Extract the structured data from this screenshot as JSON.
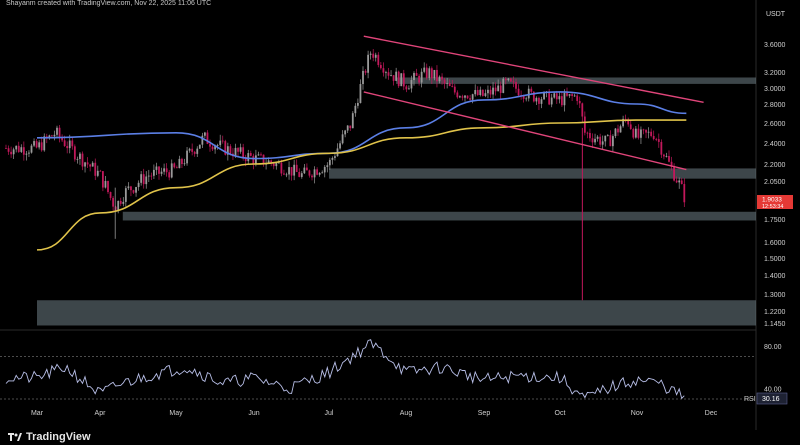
{
  "header": {
    "credit": "Shayanm created with TradingView.com, Nov 22, 2025 11:06 UTC"
  },
  "footer": {
    "brand": "TradingView"
  },
  "colors": {
    "background": "#000000",
    "candle_up": "#9a9a9a",
    "candle_down": "#c2185b",
    "ma_fast": "#5b7fe6",
    "ma_slow": "#e0c34a",
    "channel": "#e0457a",
    "zone": "#6f7f86",
    "rsi_line": "#b8bfe8",
    "price_tag": "#e53935"
  },
  "chart_data": [
    {
      "type": "candlestick",
      "y_scale": "log",
      "ylabel_unit": "USDT",
      "y_ticks": [
        "3.6000",
        "3.2000",
        "3.0000",
        "2.8000",
        "2.6000",
        "2.4000",
        "2.2000",
        "2.0500",
        "1.9033",
        "1.7500",
        "1.6000",
        "1.5000",
        "1.4000",
        "1.3000",
        "1.2200",
        "1.1450"
      ],
      "x_ticks": [
        "Mar",
        "Apr",
        "May",
        "Jun",
        "Jul",
        "Aug",
        "Sep",
        "Oct",
        "Nov",
        "Dec"
      ],
      "last_price": {
        "value": 1.9033,
        "countdown": "12:53:34"
      },
      "close_points": [
        [
          "Mar",
          2.35
        ],
        [
          "Mar 10",
          2.5
        ],
        [
          "Mar 20",
          2.3
        ],
        [
          "Apr",
          2.1
        ],
        [
          "Apr 7",
          1.85
        ],
        [
          "Apr 10",
          1.95
        ],
        [
          "Apr 20",
          2.1
        ],
        [
          "May",
          2.15
        ],
        [
          "May 12",
          2.45
        ],
        [
          "May 20",
          2.35
        ],
        [
          "Jun",
          2.25
        ],
        [
          "Jun 10",
          2.2
        ],
        [
          "Jun 20",
          2.1
        ],
        [
          "Jul",
          2.2
        ],
        [
          "Jul 10",
          2.6
        ],
        [
          "Jul 18",
          3.5
        ],
        [
          "Jul 25",
          3.2
        ],
        [
          "Aug",
          3.05
        ],
        [
          "Aug 10",
          3.2
        ],
        [
          "Aug 20",
          2.95
        ],
        [
          "Sep",
          2.9
        ],
        [
          "Sep 10",
          3.05
        ],
        [
          "Sep 20",
          2.9
        ],
        [
          "Oct",
          2.85
        ],
        [
          "Oct 8",
          2.9
        ],
        [
          "Oct 11",
          2.5
        ],
        [
          "Oct 20",
          2.4
        ],
        [
          "Oct 28",
          2.65
        ],
        [
          "Nov",
          2.45
        ],
        [
          "Nov 8",
          2.5
        ],
        [
          "Nov 14",
          2.2
        ],
        [
          "Nov 21",
          1.9033
        ]
      ],
      "moving_averages": [
        {
          "name": "",
          "color": "#5b7fe6",
          "points": [
            [
              "Mar",
              2.45
            ],
            [
              "May",
              2.5
            ],
            [
              "Jun",
              2.25
            ],
            [
              "Jul",
              2.3
            ],
            [
              "Aug",
              2.55
            ],
            [
              "Sep",
              2.85
            ],
            [
              "Oct",
              2.95
            ],
            [
              "Nov",
              2.8
            ],
            [
              "Nov 21",
              2.7
            ]
          ]
        },
        {
          "name": "",
          "color": "#e0c34a",
          "points": [
            [
              "Mar",
              1.55
            ],
            [
              "Apr",
              1.8
            ],
            [
              "May",
              2.0
            ],
            [
              "Jun",
              2.2
            ],
            [
              "Jul",
              2.3
            ],
            [
              "Aug",
              2.45
            ],
            [
              "Sep",
              2.55
            ],
            [
              "Oct",
              2.6
            ],
            [
              "Nov",
              2.63
            ],
            [
              "Nov 21",
              2.63
            ]
          ]
        }
      ],
      "channel": {
        "upper": [
          [
            "Jul 15",
            3.72
          ],
          [
            "Nov 28",
            2.82
          ]
        ],
        "lower": [
          [
            "Jul 15",
            2.95
          ],
          [
            "Nov 21",
            2.15
          ]
        ]
      },
      "zones": [
        {
          "from": 3.05,
          "to": 3.13,
          "start": "Jul 28"
        },
        {
          "from": 2.07,
          "to": 2.16,
          "start": "Jul 1"
        },
        {
          "from": 1.74,
          "to": 1.81,
          "start": "Apr 10"
        },
        {
          "from": 1.13,
          "to": 1.27,
          "start": "Mar"
        }
      ],
      "wick_low": {
        "date": "Oct 10",
        "value": 1.27
      }
    },
    {
      "type": "line",
      "title": "RSI",
      "value_label": "30.16",
      "y_ticks": [
        "80.00",
        "40.00"
      ],
      "levels": [
        70,
        30
      ],
      "ylim": [
        20,
        90
      ],
      "points": [
        [
          "Mar",
          50
        ],
        [
          "Mar 15",
          60
        ],
        [
          "Apr",
          35
        ],
        [
          "Apr 10",
          45
        ],
        [
          "Apr 25",
          55
        ],
        [
          "May 5",
          60
        ],
        [
          "May 20",
          45
        ],
        [
          "Jun",
          50
        ],
        [
          "Jun 15",
          40
        ],
        [
          "Jul",
          55
        ],
        [
          "Jul 10",
          70
        ],
        [
          "Jul 18",
          82
        ],
        [
          "Jul 25",
          70
        ],
        [
          "Aug",
          55
        ],
        [
          "Aug 15",
          60
        ],
        [
          "Sep",
          48
        ],
        [
          "Sep 15",
          52
        ],
        [
          "Oct",
          50
        ],
        [
          "Oct 11",
          30
        ],
        [
          "Oct 20",
          40
        ],
        [
          "Nov",
          48
        ],
        [
          "Nov 10",
          45
        ],
        [
          "Nov 21",
          30.16
        ]
      ]
    }
  ]
}
